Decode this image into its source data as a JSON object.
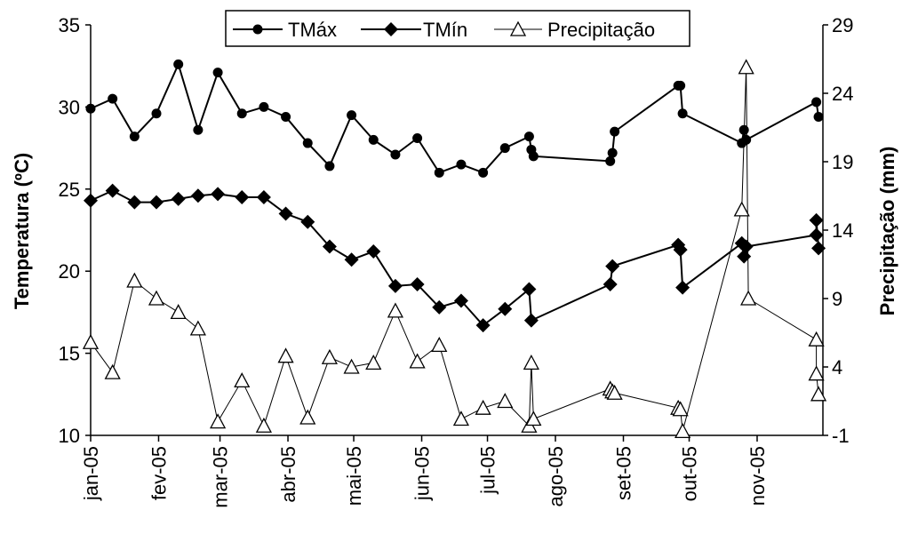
{
  "chart_data": {
    "type": "line",
    "title": "",
    "x_axis": {
      "type": "date",
      "tick_labels": [
        "jan-05",
        "fev-05",
        "mar-05",
        "abr-05",
        "mai-05",
        "jun-05",
        "jul-05",
        "ago-05",
        "set-05",
        "out-05",
        "nov-05"
      ],
      "tick_dates": [
        "2005-01-01",
        "2005-02-01",
        "2005-03-01",
        "2005-04-01",
        "2005-05-01",
        "2005-06-01",
        "2005-07-01",
        "2005-08-01",
        "2005-09-01",
        "2005-10-01",
        "2005-11-01"
      ],
      "range": [
        "2005-01-01",
        "2005-12-01"
      ]
    },
    "y_axis_left": {
      "label": "Temperatura (ºC)",
      "ylim": [
        10,
        35
      ],
      "ticks": [
        10,
        15,
        20,
        25,
        30,
        35
      ]
    },
    "y_axis_right": {
      "label": "Precipitação (mm)",
      "ylim": [
        -1,
        29
      ],
      "ticks": [
        -1,
        4,
        9,
        14,
        19,
        24,
        29
      ]
    },
    "legend": {
      "position": "top",
      "entries": [
        "TMáx",
        "TMín",
        "Precipitação"
      ]
    },
    "grid": false,
    "series": [
      {
        "name": "TMáx",
        "axis": "left",
        "marker": "circle",
        "color": "#000000",
        "points": [
          [
            "2005-01-01",
            29.9
          ],
          [
            "2005-01-11",
            30.5
          ],
          [
            "2005-01-21",
            28.2
          ],
          [
            "2005-01-31",
            29.6
          ],
          [
            "2005-02-10",
            32.6
          ],
          [
            "2005-02-19",
            28.6
          ],
          [
            "2005-02-28",
            32.1
          ],
          [
            "2005-03-11",
            29.6
          ],
          [
            "2005-03-21",
            30.0
          ],
          [
            "2005-03-31",
            29.4
          ],
          [
            "2005-04-10",
            27.8
          ],
          [
            "2005-04-20",
            26.4
          ],
          [
            "2005-04-30",
            29.5
          ],
          [
            "2005-05-10",
            28.0
          ],
          [
            "2005-05-20",
            27.1
          ],
          [
            "2005-05-30",
            28.1
          ],
          [
            "2005-06-09",
            26.0
          ],
          [
            "2005-06-19",
            26.5
          ],
          [
            "2005-06-29",
            26.0
          ],
          [
            "2005-07-09",
            27.5
          ],
          [
            "2005-07-20",
            28.2
          ],
          [
            "2005-07-21",
            27.4
          ],
          [
            "2005-07-22",
            27.0
          ],
          [
            "2005-08-26",
            26.7
          ],
          [
            "2005-08-27",
            27.2
          ],
          [
            "2005-08-28",
            28.5
          ],
          [
            "2005-09-26",
            31.3
          ],
          [
            "2005-09-27",
            31.3
          ],
          [
            "2005-09-28",
            29.6
          ],
          [
            "2005-10-25",
            27.8
          ],
          [
            "2005-10-26",
            28.6
          ],
          [
            "2005-10-27",
            28.0
          ],
          [
            "2005-11-28",
            30.3
          ],
          [
            "2005-11-29",
            29.4
          ]
        ]
      },
      {
        "name": "TMín",
        "axis": "left",
        "marker": "diamond",
        "color": "#000000",
        "points": [
          [
            "2005-01-01",
            24.3
          ],
          [
            "2005-01-11",
            24.9
          ],
          [
            "2005-01-21",
            24.2
          ],
          [
            "2005-01-31",
            24.2
          ],
          [
            "2005-02-10",
            24.4
          ],
          [
            "2005-02-19",
            24.6
          ],
          [
            "2005-02-28",
            24.7
          ],
          [
            "2005-03-11",
            24.5
          ],
          [
            "2005-03-21",
            24.5
          ],
          [
            "2005-03-31",
            23.5
          ],
          [
            "2005-04-10",
            23.0
          ],
          [
            "2005-04-20",
            21.5
          ],
          [
            "2005-04-30",
            20.7
          ],
          [
            "2005-05-10",
            21.2
          ],
          [
            "2005-05-20",
            19.1
          ],
          [
            "2005-05-30",
            19.2
          ],
          [
            "2005-06-09",
            17.8
          ],
          [
            "2005-06-19",
            18.2
          ],
          [
            "2005-06-29",
            16.7
          ],
          [
            "2005-07-09",
            17.7
          ],
          [
            "2005-07-20",
            18.9
          ],
          [
            "2005-07-21",
            17.0
          ],
          [
            "2005-08-26",
            19.2
          ],
          [
            "2005-08-27",
            20.3
          ],
          [
            "2005-09-26",
            21.6
          ],
          [
            "2005-09-27",
            21.3
          ],
          [
            "2005-09-28",
            19.0
          ],
          [
            "2005-10-25",
            21.7
          ],
          [
            "2005-10-26",
            20.9
          ],
          [
            "2005-10-27",
            21.5
          ],
          [
            "2005-11-28",
            22.2
          ],
          [
            "2005-11-28",
            23.1
          ],
          [
            "2005-11-29",
            21.4
          ]
        ]
      },
      {
        "name": "Precipitação",
        "axis": "right",
        "marker": "triangle-open",
        "color": "#000000",
        "points": [
          [
            "2005-01-01",
            5.8
          ],
          [
            "2005-01-11",
            3.6
          ],
          [
            "2005-01-21",
            10.3
          ],
          [
            "2005-01-31",
            9.0
          ],
          [
            "2005-02-10",
            8.0
          ],
          [
            "2005-02-19",
            6.8
          ],
          [
            "2005-02-28",
            0.0
          ],
          [
            "2005-03-11",
            3.0
          ],
          [
            "2005-03-21",
            -0.3
          ],
          [
            "2005-03-31",
            4.8
          ],
          [
            "2005-04-10",
            0.3
          ],
          [
            "2005-04-20",
            4.7
          ],
          [
            "2005-04-30",
            4.0
          ],
          [
            "2005-05-10",
            4.3
          ],
          [
            "2005-05-20",
            8.1
          ],
          [
            "2005-05-30",
            4.4
          ],
          [
            "2005-06-09",
            5.6
          ],
          [
            "2005-06-19",
            0.2
          ],
          [
            "2005-06-29",
            1.0
          ],
          [
            "2005-07-09",
            1.5
          ],
          [
            "2005-07-20",
            -0.3
          ],
          [
            "2005-07-21",
            4.3
          ],
          [
            "2005-07-22",
            0.2
          ],
          [
            "2005-08-26",
            2.4
          ],
          [
            "2005-08-27",
            2.2
          ],
          [
            "2005-08-28",
            2.1
          ],
          [
            "2005-09-26",
            1.0
          ],
          [
            "2005-09-27",
            0.9
          ],
          [
            "2005-09-28",
            -0.7
          ],
          [
            "2005-10-25",
            15.5
          ],
          [
            "2005-10-27",
            25.9
          ],
          [
            "2005-10-28",
            9.0
          ],
          [
            "2005-11-28",
            6.0
          ],
          [
            "2005-11-28",
            3.5
          ],
          [
            "2005-11-29",
            2.0
          ]
        ]
      }
    ]
  }
}
